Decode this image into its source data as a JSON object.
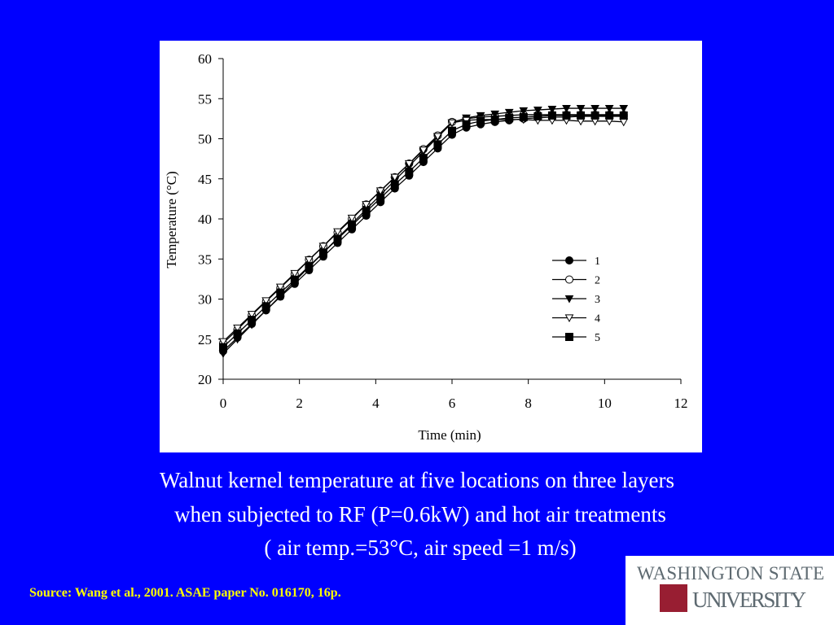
{
  "chart_data": {
    "type": "line",
    "xlabel": "Time (min)",
    "ylabel": "Temperature (°C)",
    "x": [
      0,
      0.375,
      0.75,
      1.125,
      1.5,
      1.875,
      2.25,
      2.625,
      3,
      3.375,
      3.75,
      4.125,
      4.5,
      4.875,
      5.25,
      5.625,
      6,
      6.375,
      6.75,
      7.125,
      7.5,
      7.875,
      8.25,
      8.625,
      9,
      9.375,
      9.75,
      10.125,
      10.5
    ],
    "series": [
      {
        "name": "1",
        "color": "#000000",
        "values": [
          23.5,
          25.2,
          26.9,
          28.6,
          30.3,
          31.9,
          33.6,
          35.3,
          37.0,
          38.7,
          40.4,
          42.1,
          43.8,
          45.4,
          47.1,
          48.8,
          50.5,
          51.4,
          51.8,
          52.1,
          52.3,
          52.5,
          52.6,
          52.7,
          52.7,
          52.8,
          52.8,
          52.8,
          52.8
        ]
      },
      {
        "name": "2",
        "color": "#000000",
        "values": [
          24.5,
          26.2,
          28.0,
          29.7,
          31.4,
          33.1,
          34.9,
          36.6,
          38.3,
          40.0,
          41.8,
          43.5,
          45.2,
          46.9,
          48.7,
          50.4,
          52.1,
          52.5,
          52.7,
          52.8,
          52.9,
          53.0,
          53.0,
          53.0,
          53.0,
          53.0,
          53.0,
          53.0,
          53.0
        ]
      },
      {
        "name": "3",
        "color": "#000000",
        "values": [
          23.2,
          25.0,
          26.8,
          28.6,
          30.4,
          32.2,
          34.0,
          35.8,
          37.6,
          39.4,
          41.2,
          43.0,
          44.8,
          46.6,
          48.4,
          50.2,
          52.0,
          52.6,
          52.9,
          53.1,
          53.3,
          53.5,
          53.6,
          53.7,
          53.8,
          53.8,
          53.8,
          53.8,
          53.8
        ]
      },
      {
        "name": "4",
        "color": "#000000",
        "values": [
          24.7,
          26.4,
          28.1,
          29.8,
          31.5,
          33.2,
          34.9,
          36.6,
          38.4,
          40.1,
          41.8,
          43.5,
          45.2,
          46.9,
          48.6,
          50.3,
          52.0,
          52.3,
          52.4,
          52.4,
          52.4,
          52.4,
          52.3,
          52.3,
          52.3,
          52.2,
          52.2,
          52.2,
          52.1
        ]
      },
      {
        "name": "5",
        "color": "#000000",
        "values": [
          24.0,
          25.7,
          27.4,
          29.1,
          30.8,
          32.4,
          34.1,
          35.8,
          37.5,
          39.2,
          40.9,
          42.6,
          44.3,
          45.9,
          47.6,
          49.3,
          51.0,
          51.8,
          52.2,
          52.4,
          52.6,
          52.7,
          52.8,
          52.9,
          52.9,
          52.9,
          52.9,
          52.9,
          52.9
        ]
      }
    ],
    "xlim": [
      0,
      12
    ],
    "xticks": [
      0,
      2,
      4,
      6,
      8,
      10,
      12
    ],
    "ylim": [
      20,
      60
    ],
    "yticks": [
      20,
      25,
      30,
      35,
      40,
      45,
      50,
      55,
      60
    ]
  },
  "caption": [
    "Walnut kernel temperature at five locations on three layers",
    "when subjected to RF (P=0.6kW) and hot air treatments",
    "( air temp.=53°C, air speed =1 m/s)"
  ],
  "source": "Source: Wang et al., 2001. ASAE paper No. 016170, 16p.",
  "logo": [
    "WASHINGTON STATE",
    "UNIVERSITY"
  ]
}
